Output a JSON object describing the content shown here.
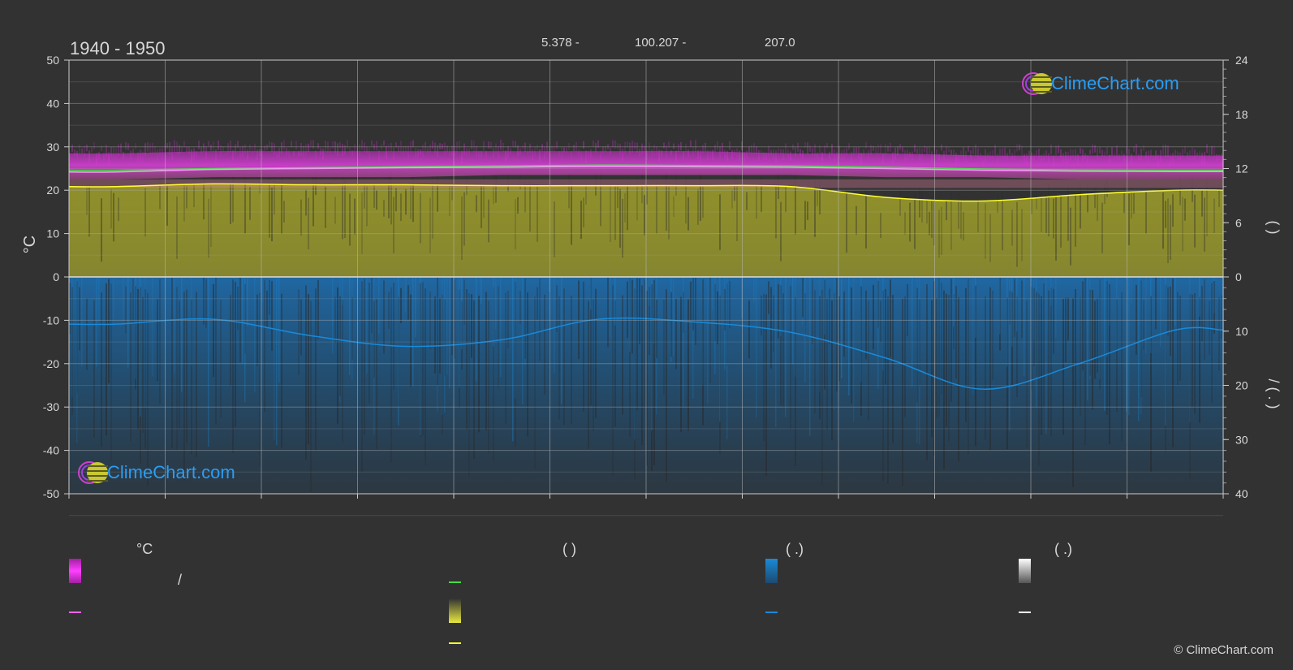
{
  "header": {
    "period": "1940 - 1950",
    "latitude": "5.378 -",
    "longitude": "100.207 -",
    "elevation": "207.0"
  },
  "axes": {
    "left_label": "°C",
    "right_top_label": "(    )",
    "right_bottom_label": "/  ( . )"
  },
  "brand": {
    "name": "ClimeChart.com",
    "copyright": "© ClimeChart.com",
    "color": "#2a9df4"
  },
  "legend": {
    "col1_head": "°C",
    "col2_head": "(          )",
    "col3_head": "(    .)",
    "col4_head": "(    .)",
    "col1_item1": "/",
    "colors": {
      "temp_range": "#e040e0",
      "temp_line": "#ff66ff",
      "green": "#44dd44",
      "sun": "#d8d840",
      "sun_line": "#ffff33",
      "rain": "#1a8ad8",
      "snow": "#ffffff"
    }
  },
  "chart_data": {
    "type": "area",
    "x_months": 12,
    "left_axis": {
      "label": "°C",
      "range": [
        -50,
        50
      ],
      "ticks": [
        50,
        40,
        30,
        20,
        10,
        0,
        -10,
        -20,
        -30,
        -40,
        -50
      ]
    },
    "right_axis_top": {
      "range": [
        0,
        24
      ],
      "ticks": [
        24,
        18,
        12,
        6,
        0
      ]
    },
    "right_axis_bottom": {
      "range": [
        0,
        40
      ],
      "ticks": [
        10,
        20,
        30,
        40
      ]
    },
    "series": [
      {
        "kind": "temp_max_band",
        "values": [
          28.5,
          29,
          29,
          29,
          29,
          29,
          29,
          28.5,
          28.5,
          28,
          28,
          28
        ]
      },
      {
        "kind": "temp_min_band",
        "values": [
          22.5,
          23,
          23,
          23,
          23.5,
          23.5,
          23.5,
          23.5,
          23,
          23,
          22.5,
          22.5
        ]
      },
      {
        "kind": "temp_mean_line",
        "values": [
          24.2,
          24.8,
          25,
          25.2,
          25.3,
          25.5,
          25.4,
          25.3,
          25,
          24.6,
          24.4,
          24.3
        ]
      },
      {
        "kind": "green_line",
        "values": [
          24.6,
          25,
          25.2,
          25.4,
          25.6,
          25.8,
          25.7,
          25.6,
          25.3,
          24.9,
          24.7,
          24.6
        ]
      },
      {
        "kind": "daylight_hours",
        "values": [
          10.0,
          10.3,
          10.2,
          10.2,
          10.1,
          10.1,
          10.1,
          10.0,
          8.8,
          8.4,
          9.1,
          9.6
        ]
      },
      {
        "kind": "precipitation",
        "values": [
          8.7,
          7.8,
          10.8,
          12.8,
          11.6,
          7.8,
          8.3,
          10.2,
          15.0,
          20.7,
          16.0,
          9.8
        ]
      }
    ]
  }
}
